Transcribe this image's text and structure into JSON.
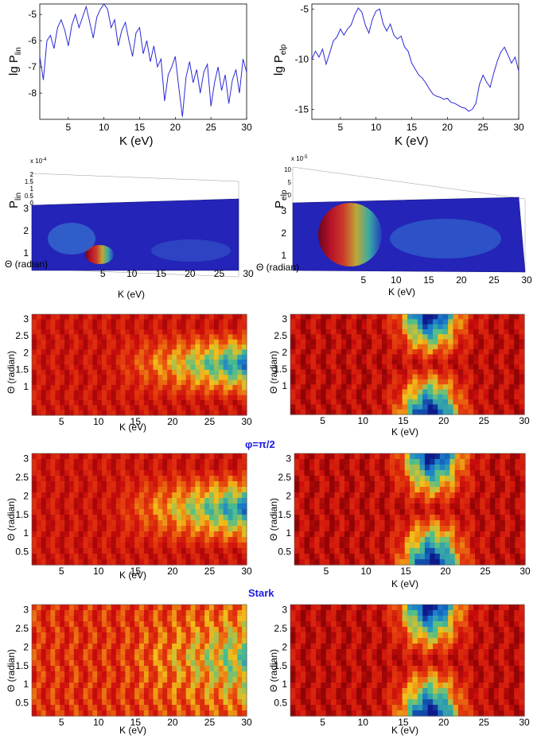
{
  "chart_data": [
    {
      "id": "plin",
      "type": "line",
      "ylabel_main": "lg P",
      "ylabel_sub": "lin",
      "xlabel": "K (eV)",
      "xlim": [
        1,
        30
      ],
      "ylim": [
        -9,
        -4.6
      ],
      "xticks": [
        5,
        10,
        15,
        20,
        25,
        30
      ],
      "yticks": [
        -8,
        -7,
        -6,
        -5
      ],
      "x": [
        1,
        1.5,
        2,
        2.5,
        3,
        3.5,
        4,
        4.5,
        5,
        5.5,
        6,
        6.5,
        7,
        7.5,
        8,
        8.5,
        9,
        9.5,
        10,
        10.5,
        11,
        11.5,
        12,
        12.5,
        13,
        13.5,
        14,
        14.5,
        15,
        15.5,
        16,
        16.5,
        17,
        17.5,
        18,
        18.5,
        19,
        19.5,
        20,
        20.5,
        21,
        21.5,
        22,
        22.5,
        23,
        23.5,
        24,
        24.5,
        25,
        25.5,
        26,
        26.5,
        27,
        27.5,
        28,
        28.5,
        29,
        29.5,
        30
      ],
      "y": [
        -6.6,
        -7.5,
        -6.0,
        -5.8,
        -6.3,
        -5.5,
        -5.2,
        -5.6,
        -6.2,
        -5.4,
        -5.0,
        -5.5,
        -5.1,
        -4.7,
        -5.3,
        -5.9,
        -5.1,
        -4.8,
        -4.6,
        -4.8,
        -5.5,
        -5.2,
        -6.2,
        -5.6,
        -5.3,
        -6.0,
        -6.6,
        -5.7,
        -5.5,
        -6.5,
        -6.0,
        -6.8,
        -6.2,
        -7.0,
        -6.7,
        -8.3,
        -7.3,
        -7.0,
        -6.6,
        -7.8,
        -8.9,
        -7.4,
        -6.8,
        -7.6,
        -7.1,
        -8.0,
        -7.2,
        -6.9,
        -8.5,
        -7.6,
        -7.0,
        -7.9,
        -7.3,
        -8.4,
        -7.5,
        -7.1,
        -8.0,
        -6.7,
        -7.2
      ]
    },
    {
      "id": "pelp",
      "type": "line",
      "ylabel_main": "lg P",
      "ylabel_sub": "elp",
      "xlabel": "K (eV)",
      "xlim": [
        1,
        30
      ],
      "ylim": [
        -16,
        -4.5
      ],
      "xticks": [
        5,
        10,
        15,
        20,
        25,
        30
      ],
      "yticks": [
        -15,
        -10,
        -5
      ],
      "x": [
        1,
        1.5,
        2,
        2.5,
        3,
        3.5,
        4,
        4.5,
        5,
        5.5,
        6,
        6.5,
        7,
        7.5,
        8,
        8.5,
        9,
        9.5,
        10,
        10.5,
        11,
        11.5,
        12,
        12.5,
        13,
        13.5,
        14,
        14.5,
        15,
        15.5,
        16,
        16.5,
        17,
        17.5,
        18,
        18.5,
        19,
        19.5,
        20,
        20.5,
        21,
        21.5,
        22,
        22.5,
        23,
        23.5,
        24,
        24.5,
        25,
        25.5,
        26,
        26.5,
        27,
        27.5,
        28,
        28.5,
        29,
        29.5,
        30
      ],
      "y": [
        -10,
        -9.2,
        -9.8,
        -9.0,
        -10.5,
        -9.4,
        -8.2,
        -7.8,
        -7.0,
        -7.6,
        -7.0,
        -6.6,
        -5.6,
        -4.9,
        -5.3,
        -6.6,
        -7.4,
        -6.0,
        -5.2,
        -5.0,
        -6.5,
        -7.2,
        -6.5,
        -7.6,
        -8.0,
        -7.7,
        -8.8,
        -9.2,
        -10.4,
        -11.0,
        -11.6,
        -11.9,
        -12.4,
        -13.0,
        -13.5,
        -13.7,
        -13.8,
        -14.0,
        -13.9,
        -14.3,
        -14.4,
        -14.6,
        -14.8,
        -14.9,
        -15.2,
        -15.0,
        -14.4,
        -12.5,
        -11.6,
        -12.3,
        -12.8,
        -11.4,
        -10.2,
        -9.3,
        -8.8,
        -9.6,
        -10.4,
        -9.8,
        -11.2
      ]
    },
    {
      "id": "surf-lin",
      "type": "heatmap",
      "zlabel_main": "P",
      "zlabel_sub": "lin",
      "zscale": "x 10",
      "zscale_exp": "-4",
      "zticks": [
        "0",
        "0.5",
        "1",
        "1.5",
        "2"
      ],
      "xlabel": "K (eV)",
      "ylabel": "Θ (radian)",
      "xticks": [
        5,
        10,
        15,
        20,
        25,
        30
      ],
      "yticks": [
        1,
        2,
        3
      ]
    },
    {
      "id": "surf-elp",
      "type": "heatmap",
      "zlabel_main": "P",
      "zlabel_sub": "elp",
      "zscale": "x 10",
      "zscale_exp": "-5",
      "zticks": [
        "0",
        "5",
        "10"
      ],
      "xlabel": "K (eV)",
      "ylabel": "Θ (radian)",
      "xticks": [
        5,
        10,
        15,
        20,
        25,
        30
      ],
      "yticks": [
        1,
        2,
        3
      ]
    },
    {
      "id": "map-1L",
      "type": "heatmap",
      "xlabel": "K (eV)",
      "ylabel": "Θ (radian)",
      "xticks": [
        5,
        10,
        15,
        20,
        25,
        30
      ],
      "yticks": [
        "1",
        "1.5",
        "2",
        "2.5",
        "3"
      ]
    },
    {
      "id": "map-1R",
      "type": "heatmap",
      "xlabel": "K (eV)",
      "ylabel": "Θ (radian)",
      "xticks": [
        5,
        10,
        15,
        20,
        25,
        30
      ],
      "yticks": [
        "1",
        "1.5",
        "2",
        "2.5",
        "3"
      ]
    },
    {
      "id": "map-2L",
      "type": "heatmap",
      "xlabel": "K (eV)",
      "ylabel": "Θ (radian)",
      "xticks": [
        5,
        10,
        15,
        20,
        25,
        30
      ],
      "yticks": [
        "0.5",
        "1",
        "1.5",
        "2",
        "2.5",
        "3"
      ]
    },
    {
      "id": "map-2R",
      "type": "heatmap",
      "xlabel": "K (eV)",
      "ylabel": "Θ (radian)",
      "xticks": [
        5,
        10,
        15,
        20,
        25,
        30
      ],
      "yticks": [
        "0.5",
        "1",
        "1.5",
        "2",
        "2.5",
        "3"
      ]
    },
    {
      "id": "map-3L",
      "type": "heatmap",
      "xlabel": "K (eV)",
      "ylabel": "Θ (radian)",
      "xticks": [
        5,
        10,
        15,
        20,
        25,
        30
      ],
      "yticks": [
        "0.5",
        "1",
        "1.5",
        "2",
        "2.5",
        "3"
      ]
    },
    {
      "id": "map-3R",
      "type": "heatmap",
      "xlabel": "K (eV)",
      "ylabel": "Θ (radian)",
      "xticks": [
        5,
        10,
        15,
        20,
        25,
        30
      ],
      "yticks": [
        "0.5",
        "1",
        "1.5",
        "2",
        "2.5",
        "3"
      ]
    }
  ],
  "captions": {
    "phi": "φ=π/2",
    "stark": "Stark"
  },
  "colors": {
    "line": "#2a2ad6",
    "surface_flat": "#2222bb",
    "caption": "#1a1ae6"
  }
}
